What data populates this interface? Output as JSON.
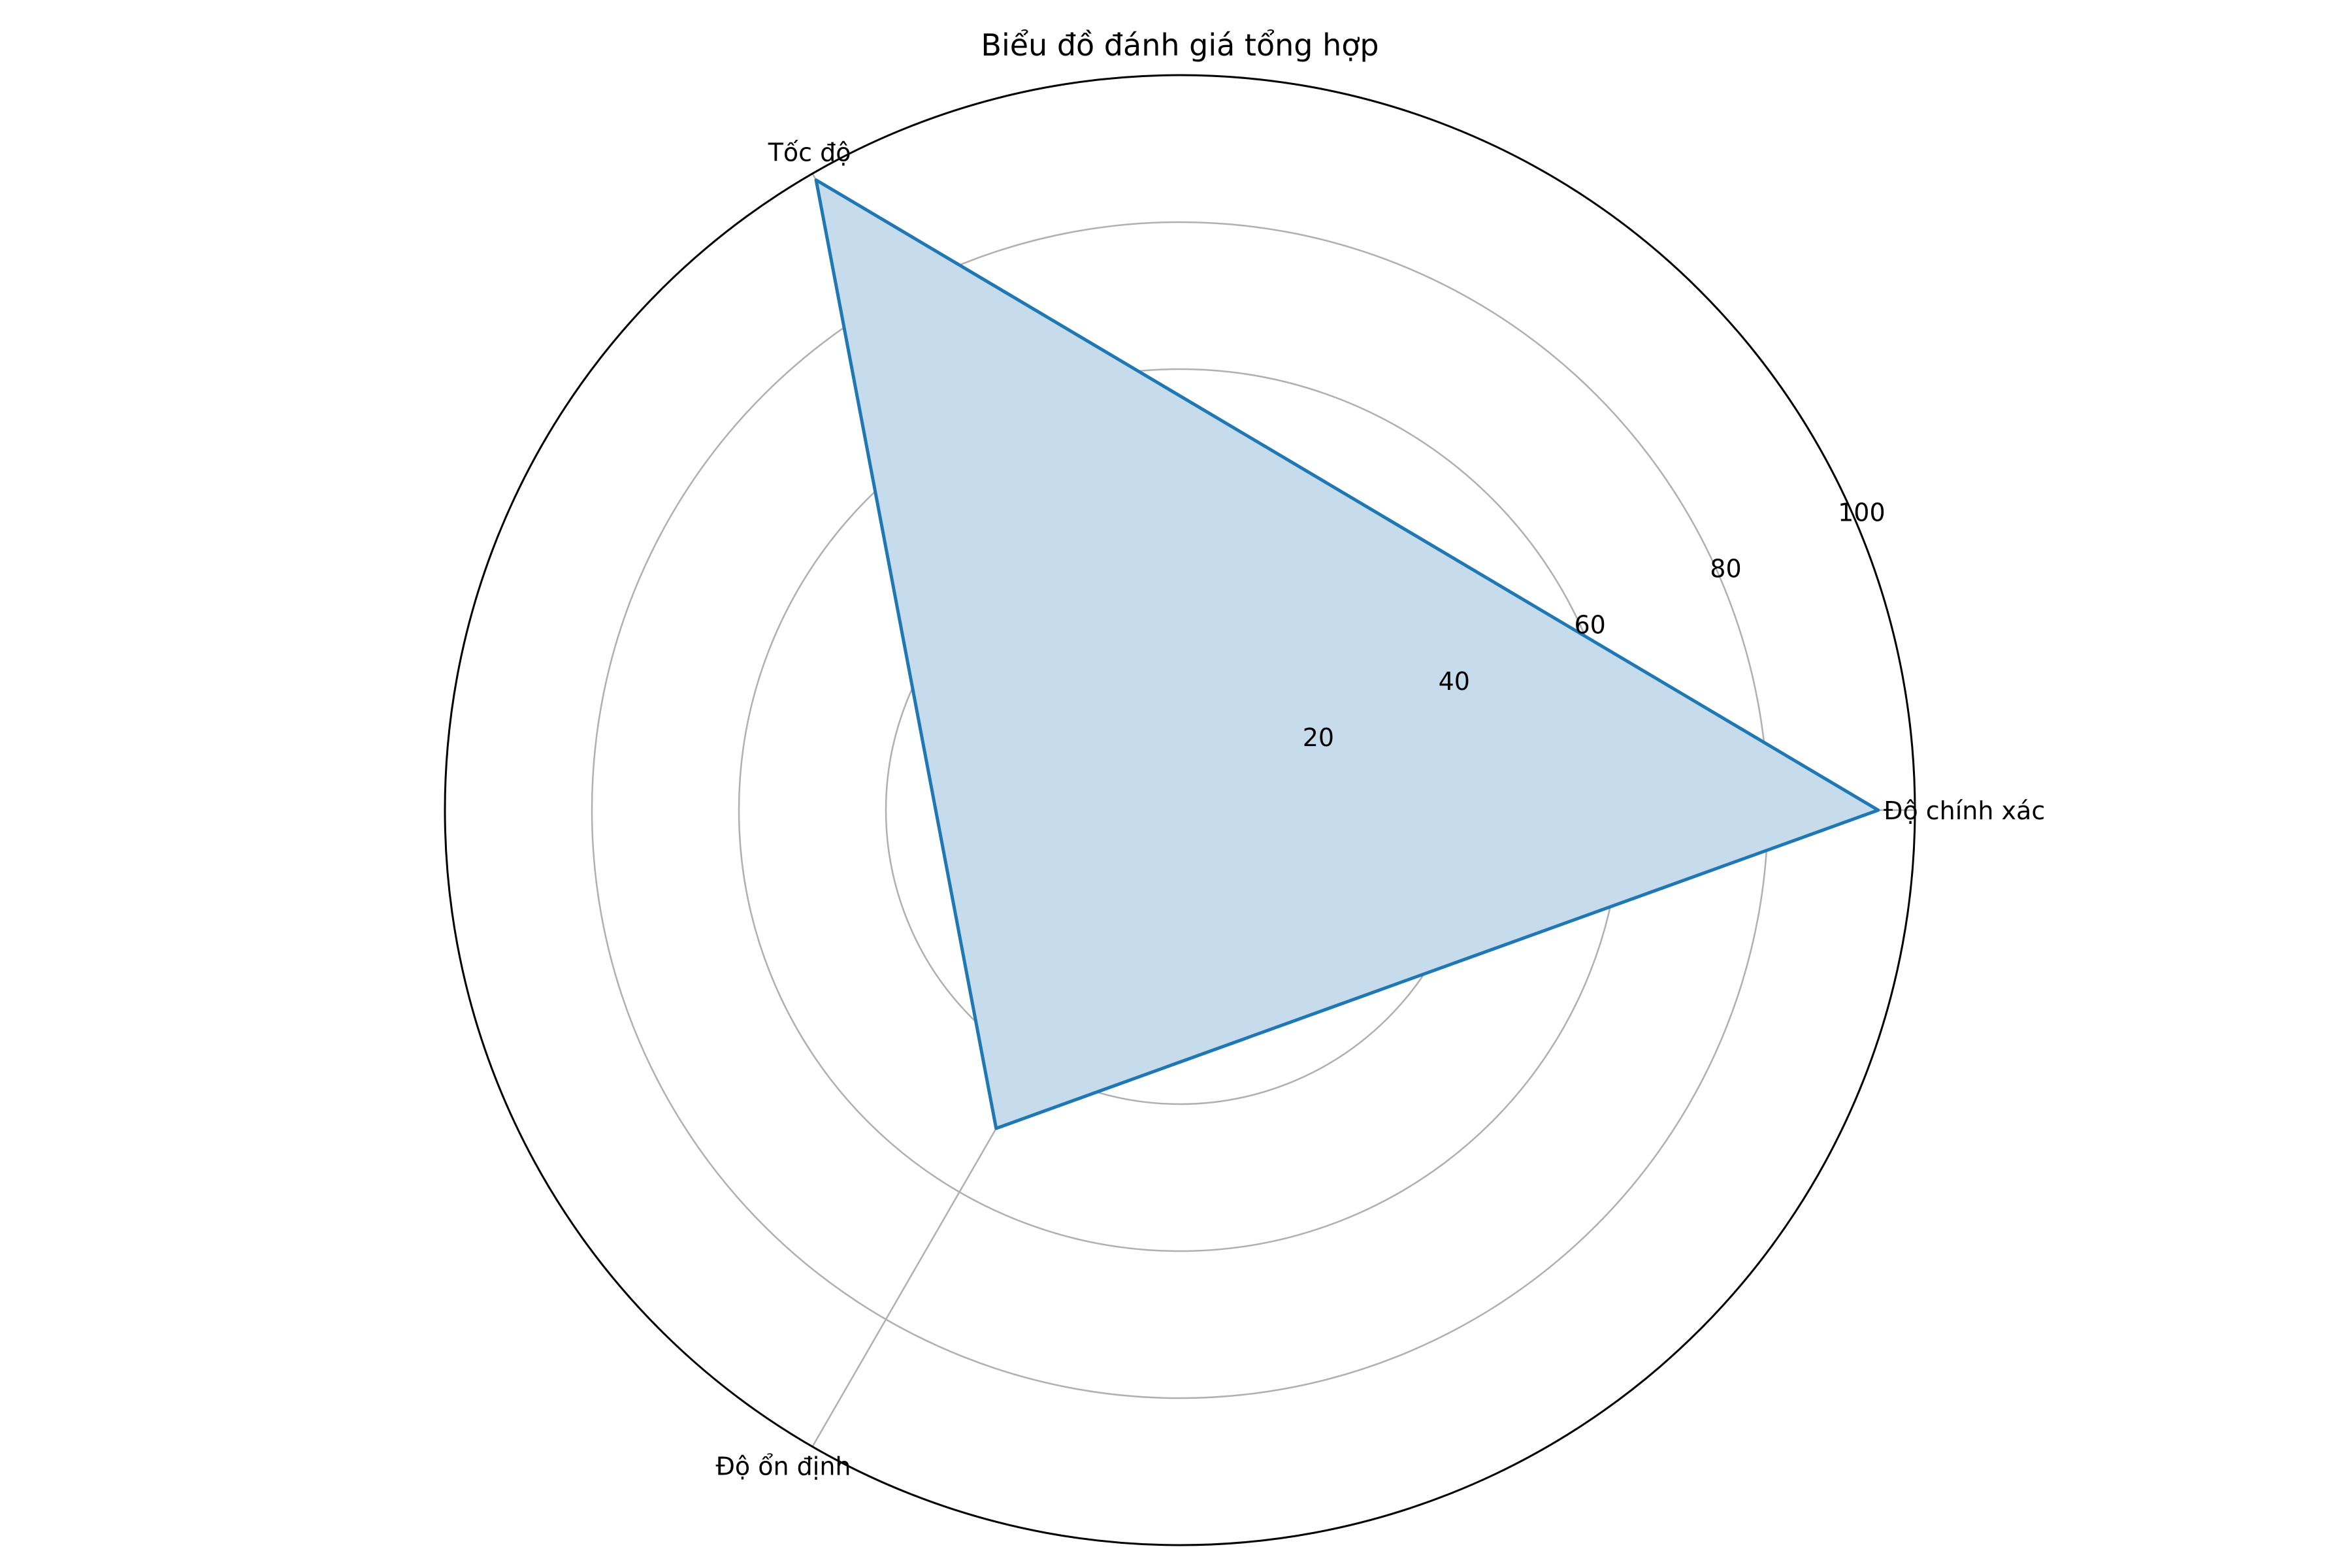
{
  "chart_data": {
    "type": "radar",
    "title": "Biểu đồ đánh giá tổng hợp",
    "categories": [
      "Độ chính xác",
      "Tốc độ",
      "Độ ổn định"
    ],
    "series": [
      {
        "values": [
          95,
          99,
          50
        ]
      }
    ],
    "rlim": [
      0,
      100
    ],
    "radial_ticks": [
      20,
      40,
      60,
      80,
      100
    ],
    "radial_tick_labels": [
      "20",
      "40",
      "60",
      "80",
      "100"
    ],
    "grid": true,
    "colors": {
      "line": "#1f77b4",
      "fill": "#c6dbec",
      "grid": "#b0b0b0",
      "frame": "#000000"
    }
  }
}
